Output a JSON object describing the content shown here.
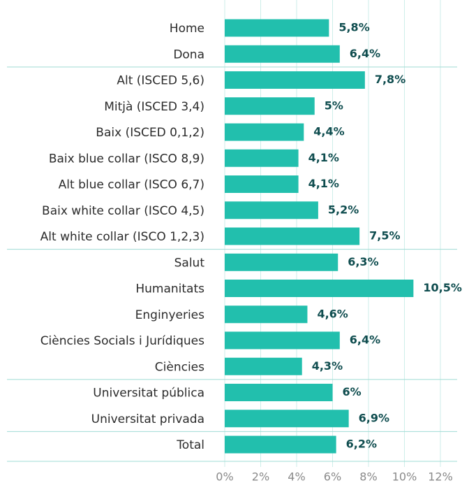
{
  "chart_data": {
    "type": "bar",
    "orientation": "horizontal",
    "categories": [
      "Home",
      "Dona",
      "Alt (ISCED 5,6)",
      "Mitjà (ISCED 3,4)",
      "Baix (ISCED 0,1,2)",
      "Baix blue collar (ISCO 8,9)",
      "Alt blue collar (ISCO 6,7)",
      "Baix white collar (ISCO 4,5)",
      "Alt white collar (ISCO 1,2,3)",
      "Salut",
      "Humanitats",
      "Enginyeries",
      "Ciències Socials i Jurídiques",
      "Ciències",
      "Universitat pública",
      "Universitat privada",
      "Total"
    ],
    "values": [
      5.8,
      6.4,
      7.8,
      5,
      4.4,
      4.1,
      4.1,
      5.2,
      7.5,
      6.3,
      10.5,
      4.6,
      6.4,
      4.3,
      6,
      6.9,
      6.2
    ],
    "value_labels": [
      "5,8%",
      "6,4%",
      "7,8%",
      "5%",
      "4,4%",
      "4,1%",
      "4,1%",
      "5,2%",
      "7,5%",
      "6,3%",
      "10,5%",
      "4,6%",
      "6,4%",
      "4,3%",
      "6%",
      "6,9%",
      "6,2%"
    ],
    "color": "#22bfad",
    "xlim": [
      0,
      12
    ],
    "xticks": [
      {
        "value": 0,
        "label": "0%"
      },
      {
        "value": 2,
        "label": "2%"
      },
      {
        "value": 4,
        "label": "4%"
      },
      {
        "value": 6,
        "label": "6%"
      },
      {
        "value": 8,
        "label": "8%"
      },
      {
        "value": 10,
        "label": "10%"
      },
      {
        "value": 12,
        "label": "12%"
      }
    ],
    "grid": true
  }
}
